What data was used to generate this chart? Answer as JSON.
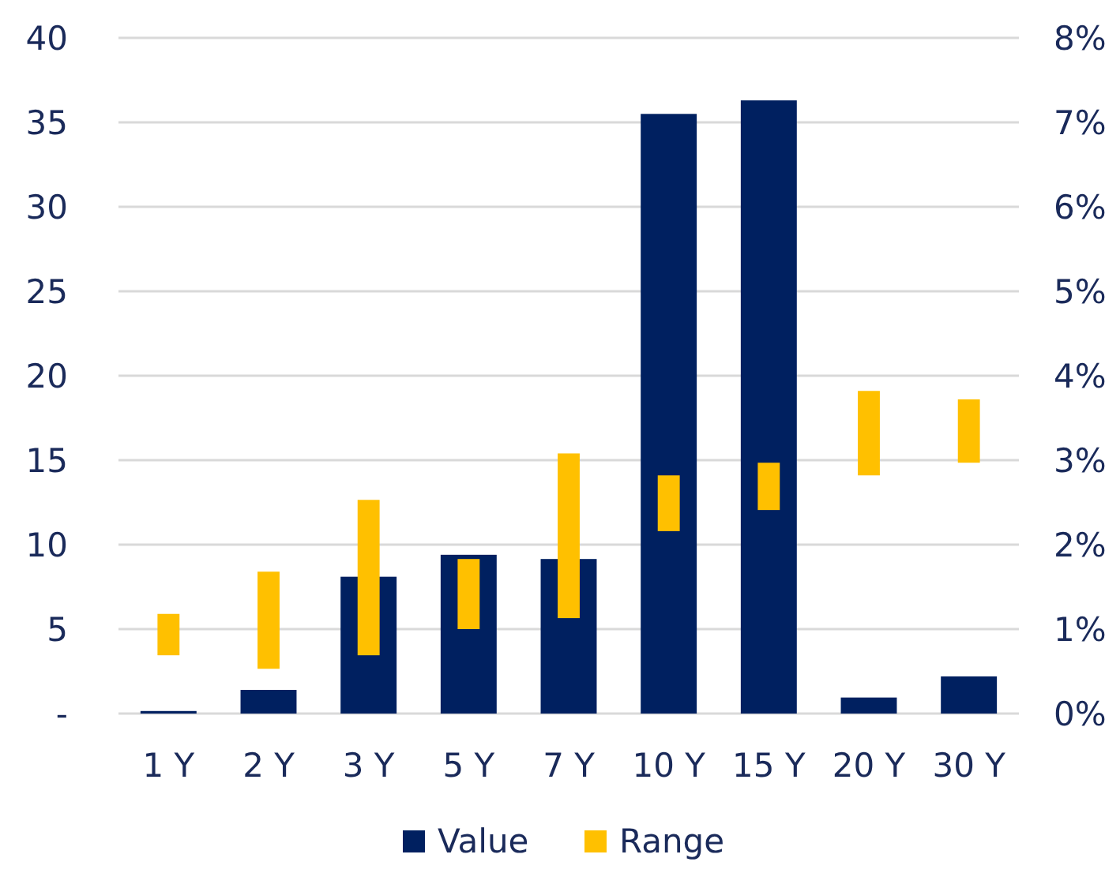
{
  "chart_data": {
    "type": "bar",
    "categories": [
      "1 Y",
      "2 Y",
      "3 Y",
      "5 Y",
      "7 Y",
      "10 Y",
      "15 Y",
      "20 Y",
      "30 Y"
    ],
    "series": [
      {
        "name": "Value",
        "color": "#002060",
        "values": [
          0.15,
          1.4,
          8.1,
          9.4,
          9.15,
          35.5,
          36.3,
          0.95,
          2.2
        ]
      },
      {
        "name": "Range",
        "color": "#ffc000",
        "axis": "y2",
        "base": [
          0.69,
          0.53,
          0.69,
          1.0,
          1.13,
          2.16,
          2.41,
          2.82,
          2.97
        ],
        "values": [
          0.49,
          1.15,
          1.84,
          0.83,
          1.95,
          0.66,
          0.56,
          1.0,
          0.75
        ]
      }
    ],
    "ylim": [
      0,
      40
    ],
    "yticks": [
      {
        "value": 0,
        "label": "-"
      },
      5,
      10,
      15,
      20,
      25,
      30,
      35,
      40
    ],
    "y2lim": [
      0,
      8
    ],
    "y2ticks": [
      {
        "value": 0,
        "label": "0%"
      },
      {
        "value": 1,
        "label": "1%"
      },
      {
        "value": 2,
        "label": "2%"
      },
      {
        "value": 3,
        "label": "3%"
      },
      {
        "value": 4,
        "label": "4%"
      },
      {
        "value": 5,
        "label": "5%"
      },
      {
        "value": 6,
        "label": "6%"
      },
      {
        "value": 7,
        "label": "7%"
      },
      {
        "value": 8,
        "label": "8%"
      }
    ],
    "grid": "y",
    "legend": "bottom"
  }
}
